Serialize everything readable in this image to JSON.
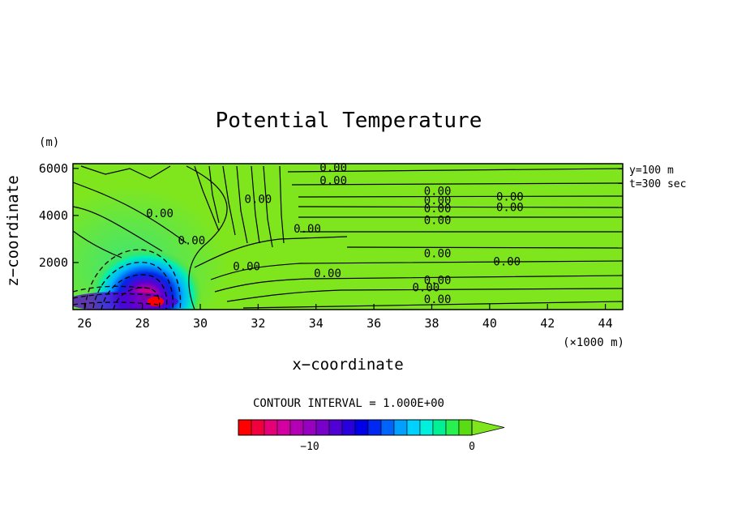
{
  "chart_data": {
    "type": "heatmap",
    "title": "Potential Temperature",
    "xlabel": "x−coordinate",
    "ylabel": "z−coordinate",
    "y_unit": "(m)",
    "x_unit": "(×1000 m)",
    "xlim": [
      25.6,
      44.6
    ],
    "ylim": [
      0,
      6200
    ],
    "x_ticks": [
      "26",
      "28",
      "30",
      "32",
      "34",
      "36",
      "38",
      "40",
      "42",
      "44"
    ],
    "y_ticks": [
      "2000",
      "4000",
      "6000"
    ],
    "annotations": [
      "y=100 m",
      "t=300 sec"
    ],
    "contour_interval_text": "CONTOUR INTERVAL = 1.000E+00",
    "contour_labels": [
      {
        "text": "0.00",
        "x": 34.6,
        "z": 6050
      },
      {
        "text": "0.00",
        "x": 34.6,
        "z": 5500
      },
      {
        "text": "0.00",
        "x": 38.2,
        "z": 5050
      },
      {
        "text": "0.00",
        "x": 38.2,
        "z": 4650
      },
      {
        "text": "0.00",
        "x": 38.2,
        "z": 4300
      },
      {
        "text": "0.00",
        "x": 38.2,
        "z": 3800
      },
      {
        "text": "0.00",
        "x": 40.7,
        "z": 4800
      },
      {
        "text": "0.00",
        "x": 40.7,
        "z": 4350
      },
      {
        "text": "0.00",
        "x": 33.7,
        "z": 3450
      },
      {
        "text": "0.00",
        "x": 38.2,
        "z": 2400
      },
      {
        "text": "0.00",
        "x": 40.6,
        "z": 2050
      },
      {
        "text": "0.00",
        "x": 34.4,
        "z": 1550
      },
      {
        "text": "0.00",
        "x": 38.2,
        "z": 1250
      },
      {
        "text": "0.00",
        "x": 37.8,
        "z": 950
      },
      {
        "text": "0.00",
        "x": 38.2,
        "z": 450
      },
      {
        "text": "0.00",
        "x": 31.6,
        "z": 1850
      },
      {
        "text": "0.00",
        "x": 29.7,
        "z": 2950
      },
      {
        "text": "0.00",
        "x": 28.6,
        "z": 4100
      },
      {
        "text": "0.00",
        "x": 32.0,
        "z": 4700
      }
    ],
    "colorbar": {
      "colors": [
        "#ff0000",
        "#f0003c",
        "#e60078",
        "#d200a0",
        "#b400b4",
        "#9600be",
        "#7800c8",
        "#5000d2",
        "#2800dc",
        "#0000e6",
        "#0028f0",
        "#0064fa",
        "#00a0ff",
        "#00d2ff",
        "#00f0dc",
        "#00f096",
        "#28f050",
        "#5adc14"
      ],
      "extension_color": "#7fe61e",
      "ticks": [
        "−10",
        "0"
      ]
    },
    "field_color": "#7fe61e"
  }
}
